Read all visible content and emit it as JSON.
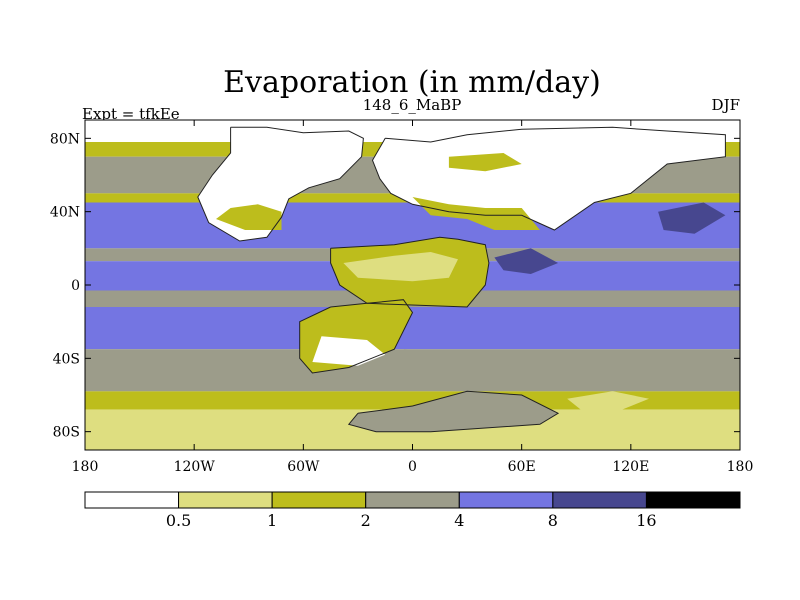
{
  "chart_data": {
    "type": "heatmap",
    "title": "Evaporation (in mm/day)",
    "left_label": "Expt = tfkEe",
    "center_label": "148_6_MaBP",
    "right_label": "DJF",
    "projection": "cylindrical-equidistant",
    "xlim": [
      -180,
      180
    ],
    "ylim": [
      -90,
      90
    ],
    "x_ticks": [
      {
        "value": -180,
        "label": "180"
      },
      {
        "value": -120,
        "label": "120W"
      },
      {
        "value": -60,
        "label": "60W"
      },
      {
        "value": 0,
        "label": "0"
      },
      {
        "value": 60,
        "label": "60E"
      },
      {
        "value": 120,
        "label": "120E"
      },
      {
        "value": 180,
        "label": "180"
      }
    ],
    "y_ticks": [
      {
        "value": 80,
        "label": "80N"
      },
      {
        "value": 40,
        "label": "40N"
      },
      {
        "value": 0,
        "label": "0"
      },
      {
        "value": -40,
        "label": "40S"
      },
      {
        "value": -80,
        "label": "80S"
      }
    ],
    "colorbar": {
      "levels": [
        "0.5",
        "1",
        "2",
        "4",
        "8",
        "16"
      ],
      "colors": [
        "#ffffff",
        "#dede80",
        "#bdbd1c",
        "#9c9c8a",
        "#7475e2",
        "#47478f",
        "#000000"
      ]
    },
    "bands": [
      {
        "lat": [
          78,
          90
        ],
        "class": 0
      },
      {
        "lat": [
          70,
          78
        ],
        "class": 2
      },
      {
        "lat": [
          50,
          70
        ],
        "class": 3
      },
      {
        "lat": [
          45,
          50
        ],
        "class": 2
      },
      {
        "lat": [
          20,
          45
        ],
        "class": 4
      },
      {
        "lat": [
          13,
          20
        ],
        "class": 3
      },
      {
        "lat": [
          -3,
          13
        ],
        "class": 4
      },
      {
        "lat": [
          -12,
          -3
        ],
        "class": 3
      },
      {
        "lat": [
          -35,
          -12
        ],
        "class": 4
      },
      {
        "lat": [
          -45,
          -35
        ],
        "class": 3
      },
      {
        "lat": [
          -58,
          -45
        ],
        "class": 3
      },
      {
        "lat": [
          -68,
          -58
        ],
        "class": 2
      },
      {
        "lat": [
          -78,
          -68
        ],
        "class": 1
      },
      {
        "lat": [
          -90,
          -78
        ],
        "class": 1
      }
    ],
    "regions": [
      {
        "name": "north-america",
        "class": 0,
        "poly": [
          [
            -100,
            86
          ],
          [
            -80,
            86
          ],
          [
            -60,
            83
          ],
          [
            -35,
            84
          ],
          [
            -27,
            80
          ],
          [
            -28,
            70
          ],
          [
            -40,
            58
          ],
          [
            -57,
            53
          ],
          [
            -68,
            47
          ],
          [
            -72,
            37
          ],
          [
            -80,
            26
          ],
          [
            -95,
            24
          ],
          [
            -112,
            34
          ],
          [
            -118,
            48
          ],
          [
            -110,
            60
          ],
          [
            -100,
            72
          ]
        ]
      },
      {
        "name": "north-america-low",
        "class": 2,
        "poly": [
          [
            -92,
            30
          ],
          [
            -72,
            30
          ],
          [
            -72,
            40
          ],
          [
            -85,
            44
          ],
          [
            -100,
            42
          ],
          [
            -108,
            36
          ]
        ]
      },
      {
        "name": "north-africa",
        "class": 2,
        "poly": [
          [
            -45,
            20
          ],
          [
            -10,
            22
          ],
          [
            15,
            26
          ],
          [
            25,
            25
          ],
          [
            40,
            22
          ],
          [
            42,
            12
          ],
          [
            40,
            0
          ],
          [
            30,
            -12
          ],
          [
            -25,
            -10
          ],
          [
            -40,
            0
          ],
          [
            -45,
            12
          ]
        ]
      },
      {
        "name": "north-africa-desert",
        "class": 1,
        "poly": [
          [
            -38,
            12
          ],
          [
            -10,
            16
          ],
          [
            10,
            18
          ],
          [
            25,
            14
          ],
          [
            20,
            4
          ],
          [
            0,
            2
          ],
          [
            -30,
            4
          ]
        ]
      },
      {
        "name": "eurasia",
        "class": 0,
        "poly": [
          [
            -15,
            80
          ],
          [
            10,
            78
          ],
          [
            30,
            82
          ],
          [
            60,
            85
          ],
          [
            110,
            86
          ],
          [
            140,
            84
          ],
          [
            172,
            82
          ],
          [
            172,
            70
          ],
          [
            140,
            66
          ],
          [
            120,
            50
          ],
          [
            100,
            45
          ],
          [
            78,
            30
          ],
          [
            60,
            38
          ],
          [
            40,
            38
          ],
          [
            20,
            40
          ],
          [
            0,
            44
          ],
          [
            -12,
            50
          ],
          [
            -18,
            58
          ],
          [
            -22,
            68
          ]
        ]
      },
      {
        "name": "eurasia-south",
        "class": 2,
        "poly": [
          [
            0,
            48
          ],
          [
            20,
            44
          ],
          [
            40,
            42
          ],
          [
            60,
            42
          ],
          [
            70,
            30
          ],
          [
            45,
            30
          ],
          [
            30,
            36
          ],
          [
            10,
            38
          ]
        ]
      },
      {
        "name": "europe-north",
        "class": 2,
        "poly": [
          [
            20,
            70
          ],
          [
            50,
            72
          ],
          [
            60,
            66
          ],
          [
            40,
            62
          ],
          [
            20,
            64
          ]
        ]
      },
      {
        "name": "south-america",
        "class": 2,
        "poly": [
          [
            -45,
            -12
          ],
          [
            -25,
            -10
          ],
          [
            -5,
            -8
          ],
          [
            0,
            -15
          ],
          [
            -10,
            -35
          ],
          [
            -35,
            -45
          ],
          [
            -55,
            -48
          ],
          [
            -62,
            -40
          ],
          [
            -62,
            -20
          ]
        ]
      },
      {
        "name": "south-america-dry",
        "class": 0,
        "poly": [
          [
            -50,
            -28
          ],
          [
            -25,
            -30
          ],
          [
            -15,
            -38
          ],
          [
            -30,
            -44
          ],
          [
            -55,
            -42
          ]
        ]
      },
      {
        "name": "africa-south",
        "class": 3,
        "poly": [
          [
            -5,
            -35
          ],
          [
            10,
            -40
          ],
          [
            35,
            -50
          ],
          [
            60,
            -54
          ],
          [
            50,
            -40
          ],
          [
            30,
            -38
          ],
          [
            15,
            -36
          ]
        ]
      },
      {
        "name": "antarctica",
        "class": 3,
        "poly": [
          [
            -30,
            -70
          ],
          [
            0,
            -66
          ],
          [
            30,
            -58
          ],
          [
            60,
            -60
          ],
          [
            80,
            -70
          ],
          [
            70,
            -76
          ],
          [
            40,
            -78
          ],
          [
            10,
            -80
          ],
          [
            -20,
            -80
          ],
          [
            -35,
            -76
          ]
        ]
      },
      {
        "name": "australia",
        "class": 1,
        "poly": [
          [
            85,
            -62
          ],
          [
            110,
            -58
          ],
          [
            130,
            -62
          ],
          [
            115,
            -68
          ],
          [
            95,
            -70
          ]
        ]
      },
      {
        "name": "pacific-nw-high",
        "class": 5,
        "poly": [
          [
            135,
            40
          ],
          [
            160,
            45
          ],
          [
            172,
            38
          ],
          [
            155,
            28
          ],
          [
            138,
            30
          ]
        ]
      },
      {
        "name": "tethys-high",
        "class": 5,
        "poly": [
          [
            45,
            15
          ],
          [
            65,
            20
          ],
          [
            80,
            12
          ],
          [
            65,
            6
          ],
          [
            50,
            8
          ]
        ]
      }
    ],
    "coastline": [
      [
        [
          -100,
          86
        ],
        [
          -80,
          86
        ],
        [
          -60,
          83
        ],
        [
          -35,
          84
        ],
        [
          -27,
          80
        ],
        [
          -28,
          70
        ],
        [
          -40,
          58
        ],
        [
          -57,
          53
        ],
        [
          -68,
          47
        ],
        [
          -72,
          37
        ],
        [
          -80,
          26
        ],
        [
          -95,
          24
        ],
        [
          -112,
          34
        ],
        [
          -118,
          48
        ],
        [
          -110,
          60
        ],
        [
          -100,
          72
        ],
        [
          -100,
          86
        ]
      ],
      [
        [
          -15,
          80
        ],
        [
          10,
          78
        ],
        [
          30,
          82
        ],
        [
          60,
          85
        ],
        [
          110,
          86
        ],
        [
          140,
          84
        ],
        [
          172,
          82
        ],
        [
          172,
          70
        ],
        [
          140,
          66
        ],
        [
          120,
          50
        ],
        [
          100,
          45
        ],
        [
          78,
          30
        ],
        [
          60,
          38
        ],
        [
          40,
          38
        ],
        [
          20,
          40
        ],
        [
          0,
          44
        ],
        [
          -12,
          50
        ],
        [
          -18,
          58
        ],
        [
          -22,
          68
        ],
        [
          -15,
          80
        ]
      ],
      [
        [
          -45,
          20
        ],
        [
          -10,
          22
        ],
        [
          15,
          26
        ],
        [
          25,
          25
        ],
        [
          40,
          22
        ],
        [
          42,
          12
        ],
        [
          40,
          0
        ],
        [
          30,
          -12
        ],
        [
          -25,
          -10
        ],
        [
          -40,
          0
        ],
        [
          -45,
          12
        ],
        [
          -45,
          20
        ]
      ],
      [
        [
          -45,
          -12
        ],
        [
          -25,
          -10
        ],
        [
          -5,
          -8
        ],
        [
          0,
          -15
        ],
        [
          -10,
          -35
        ],
        [
          -35,
          -45
        ],
        [
          -55,
          -48
        ],
        [
          -62,
          -40
        ],
        [
          -62,
          -20
        ],
        [
          -45,
          -12
        ]
      ],
      [
        [
          -30,
          -70
        ],
        [
          0,
          -66
        ],
        [
          30,
          -58
        ],
        [
          60,
          -60
        ],
        [
          80,
          -70
        ],
        [
          70,
          -76
        ],
        [
          40,
          -78
        ],
        [
          10,
          -80
        ],
        [
          -20,
          -80
        ],
        [
          -35,
          -76
        ],
        [
          -30,
          -70
        ]
      ]
    ]
  }
}
